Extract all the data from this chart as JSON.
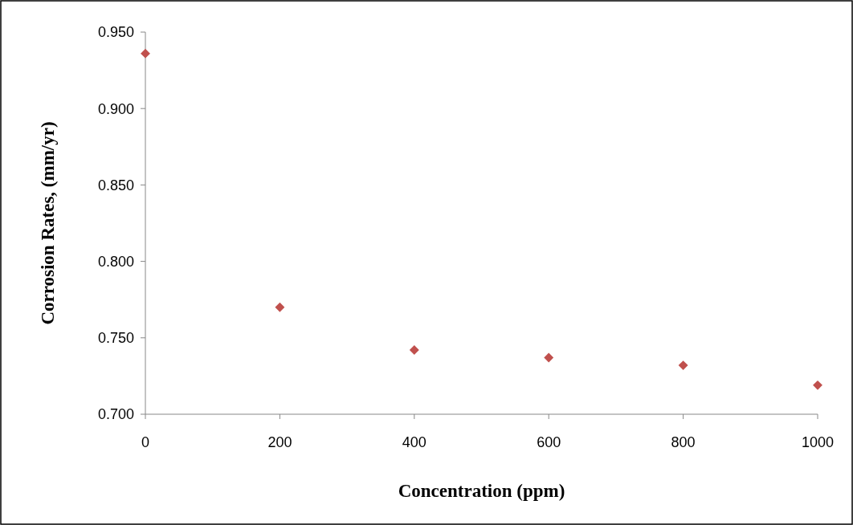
{
  "chart_data": {
    "type": "scatter",
    "xlabel": "Concentration (ppm)",
    "ylabel": "Corrosion Rates, (mm/yr)",
    "x": [
      0,
      200,
      400,
      600,
      800,
      1000
    ],
    "series": [
      {
        "color": "#c0504d",
        "values": [
          0.936,
          0.77,
          0.742,
          0.737,
          0.732,
          0.719
        ]
      }
    ],
    "xlim": [
      0,
      1000
    ],
    "xticks": [
      0,
      200,
      400,
      600,
      800,
      1000
    ],
    "ylim": [
      0.7,
      0.95
    ],
    "yticks": [
      {
        "value": 0.7,
        "label": "0.700"
      },
      {
        "value": 0.75,
        "label": "0.750"
      },
      {
        "value": 0.8,
        "label": "0.800"
      },
      {
        "value": 0.85,
        "label": "0.850"
      },
      {
        "value": 0.9,
        "label": "0.900"
      },
      {
        "value": 0.95,
        "label": "0.950"
      }
    ],
    "grid": false,
    "marker": "diamond"
  }
}
